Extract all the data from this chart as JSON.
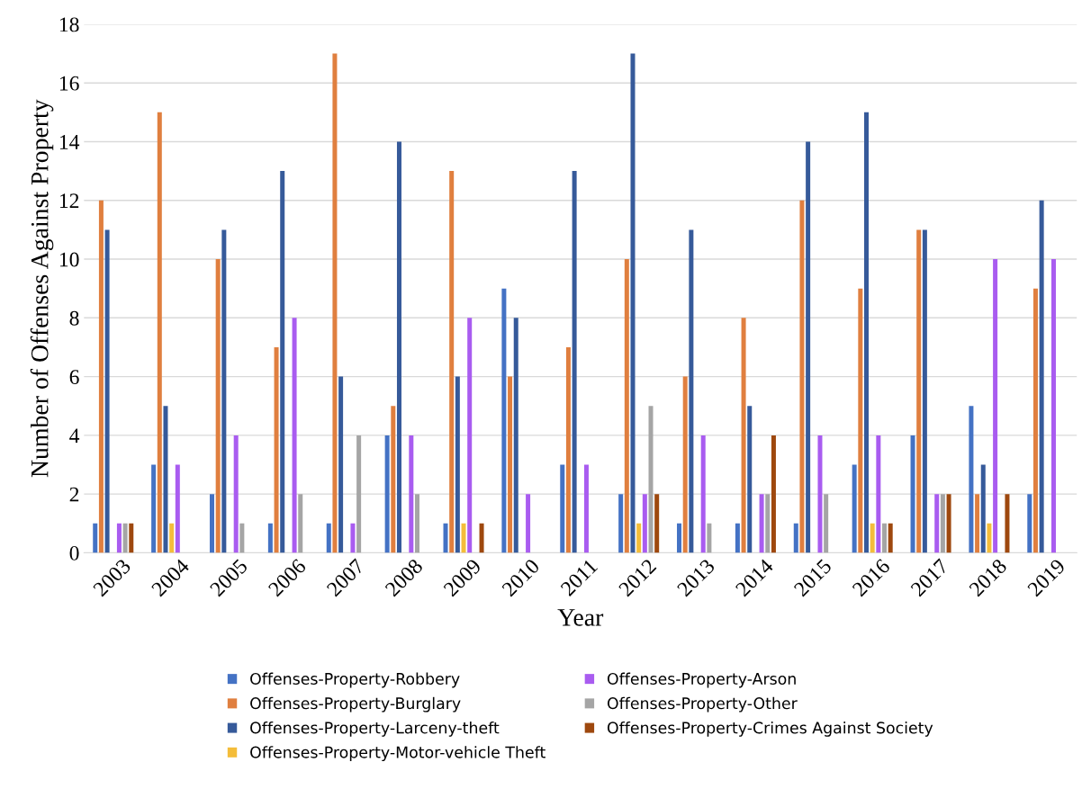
{
  "chart_data": {
    "type": "bar",
    "xlabel": "Year",
    "ylabel": "Number of Offenses Against Property",
    "categories": [
      "2003",
      "2004",
      "2005",
      "2006",
      "2007",
      "2008",
      "2009",
      "2010",
      "2011",
      "2012",
      "2013",
      "2014",
      "2015",
      "2016",
      "2017",
      "2018",
      "2019"
    ],
    "series": [
      {
        "name": "Offenses-Property-Robbery",
        "color": "#4472c4",
        "values": [
          1,
          3,
          2,
          1,
          1,
          4,
          1,
          9,
          3,
          2,
          1,
          1,
          1,
          3,
          4,
          5,
          2
        ]
      },
      {
        "name": "Offenses-Property-Burglary",
        "color": "#e07f3f",
        "values": [
          12,
          15,
          10,
          7,
          17,
          5,
          13,
          6,
          7,
          10,
          6,
          8,
          12,
          9,
          11,
          2,
          9
        ]
      },
      {
        "name": "Offenses-Property-Larceny-theft",
        "color": "#365a9a",
        "values": [
          11,
          5,
          11,
          13,
          6,
          14,
          6,
          8,
          13,
          17,
          11,
          5,
          14,
          15,
          11,
          3,
          12
        ]
      },
      {
        "name": "Offenses-Property-Motor-vehicle Theft",
        "color": "#f4bd3a",
        "values": [
          0,
          1,
          0,
          0,
          0,
          0,
          1,
          0,
          0,
          1,
          0,
          0,
          0,
          1,
          0,
          1,
          0
        ]
      },
      {
        "name": "Offenses-Property-Arson",
        "color": "#a95cf0",
        "values": [
          1,
          3,
          4,
          8,
          1,
          4,
          8,
          2,
          3,
          2,
          4,
          2,
          4,
          4,
          2,
          10,
          10
        ]
      },
      {
        "name": "Offenses-Property-Other",
        "color": "#a5a5a5",
        "values": [
          1,
          0,
          1,
          2,
          4,
          2,
          0,
          0,
          0,
          5,
          1,
          2,
          2,
          1,
          2,
          0,
          0
        ]
      },
      {
        "name": "Offenses-Property-Crimes Against Society",
        "color": "#9e480e",
        "values": [
          1,
          0,
          0,
          0,
          0,
          0,
          1,
          0,
          0,
          2,
          0,
          4,
          0,
          1,
          2,
          2,
          0
        ]
      }
    ],
    "ylim": [
      0,
      18
    ],
    "yticks": [
      0,
      2,
      4,
      6,
      8,
      10,
      12,
      14,
      16,
      18
    ],
    "grid": "y",
    "legend": "bottom"
  }
}
